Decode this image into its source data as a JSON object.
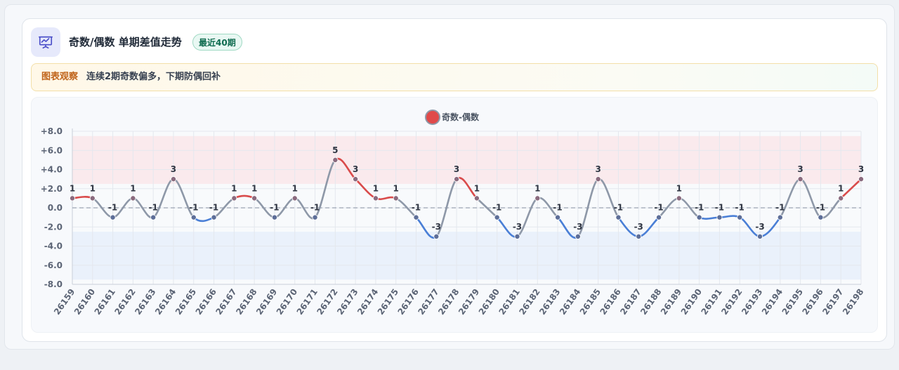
{
  "header": {
    "title": "奇数/偶数 单期差值走势",
    "badge": "最近40期",
    "icon": "presentation-chart-icon"
  },
  "note": {
    "label": "图表观察",
    "text": "连续2期奇数偏多，下期防偶回补"
  },
  "colors": {
    "positive": "#d94b4b",
    "negative": "#4a7fd6",
    "neutral": "#8e98a8",
    "upper_band": "#fae6ea",
    "lower_band": "#e8eefa"
  },
  "chart_data": {
    "type": "line",
    "title": "",
    "xlabel": "",
    "ylabel": "",
    "legend": {
      "position": "top-center",
      "label": "奇数-偶数"
    },
    "ylim": [
      -8,
      8
    ],
    "yticks": [
      "+8.0",
      "+6.0",
      "+4.0",
      "+2.0",
      "0.0",
      "-2.0",
      "-4.0",
      "-6.0",
      "-8.0"
    ],
    "ytick_values": [
      8,
      6,
      4,
      2,
      0,
      -2,
      -4,
      -6,
      -8
    ],
    "bands": [
      {
        "from": 2.5,
        "to": 7.5,
        "zone": "upper"
      },
      {
        "from": -7.5,
        "to": -2.5,
        "zone": "lower"
      }
    ],
    "zero_line": true,
    "grid": true,
    "categories": [
      "26159",
      "26160",
      "26161",
      "26162",
      "26163",
      "26164",
      "26165",
      "26166",
      "26167",
      "26168",
      "26169",
      "26170",
      "26171",
      "26172",
      "26173",
      "26174",
      "26175",
      "26176",
      "26177",
      "26178",
      "26179",
      "26180",
      "26181",
      "26182",
      "26183",
      "26184",
      "26185",
      "26186",
      "26187",
      "26188",
      "26189",
      "26190",
      "26191",
      "26192",
      "26193",
      "26194",
      "26195",
      "26196",
      "26197",
      "26198"
    ],
    "series": [
      {
        "name": "奇数-偶数",
        "values": [
          1,
          1,
          -1,
          1,
          -1,
          3,
          -1,
          -1,
          1,
          1,
          -1,
          1,
          -1,
          5,
          3,
          1,
          1,
          -1,
          -3,
          3,
          1,
          -1,
          -3,
          1,
          -1,
          -3,
          3,
          -1,
          -3,
          -1,
          1,
          -1,
          -1,
          -1,
          -3,
          -1,
          3,
          -1,
          1,
          3
        ],
        "data_labels": [
          "1",
          "1",
          "-1",
          "1",
          "-1",
          "3",
          "-1",
          "-1",
          "1",
          "1",
          "-1",
          "1",
          "-1",
          "5",
          "3",
          "1",
          "1",
          "-1",
          "-3",
          "3",
          "1",
          "-1",
          "-3",
          "1",
          "-1",
          "-3",
          "3",
          "-1",
          "-3",
          "-1",
          "1",
          "-1",
          "-1",
          "-1",
          "-3",
          "-1",
          "3",
          "-1",
          "1",
          "3"
        ]
      }
    ]
  }
}
